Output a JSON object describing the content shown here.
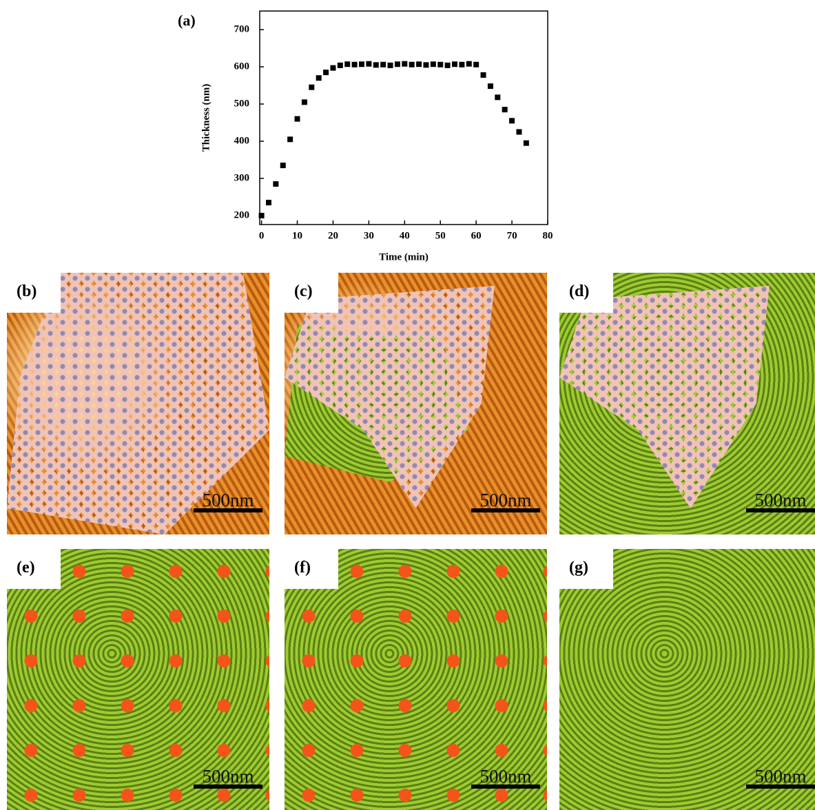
{
  "chart_data": {
    "type": "scatter",
    "label": "(a)",
    "x_label": "Time (min)",
    "y_label": "Thickness (nm)",
    "x": [
      0,
      2,
      4,
      6,
      8,
      10,
      12,
      14,
      16,
      18,
      20,
      22,
      24,
      26,
      28,
      30,
      32,
      34,
      36,
      38,
      40,
      42,
      44,
      46,
      48,
      50,
      52,
      54,
      56,
      58,
      60,
      62,
      64,
      66,
      68,
      70,
      72,
      74
    ],
    "values": [
      200,
      235,
      285,
      335,
      405,
      460,
      505,
      545,
      570,
      585,
      597,
      604,
      607,
      606,
      607,
      608,
      605,
      606,
      604,
      607,
      608,
      606,
      607,
      605,
      607,
      606,
      604,
      607,
      606,
      608,
      606,
      578,
      548,
      518,
      485,
      455,
      425,
      395
    ],
    "color": "#000000",
    "xlim": [
      -0.5,
      80
    ],
    "xticks": [
      0,
      10,
      20,
      30,
      40,
      50,
      60,
      70,
      80
    ],
    "ylim": [
      176,
      750
    ],
    "yticks": [
      200,
      300,
      400,
      500,
      600,
      700
    ]
  },
  "panels": [
    {
      "label": "(b)",
      "scale": "500nm"
    },
    {
      "label": "(c)",
      "scale": "500nm"
    },
    {
      "label": "(d)",
      "scale": "500nm"
    },
    {
      "label": "(e)",
      "scale": "500nm"
    },
    {
      "label": "(f)",
      "scale": "500nm"
    },
    {
      "label": "(g)",
      "scale": "500nm"
    }
  ]
}
